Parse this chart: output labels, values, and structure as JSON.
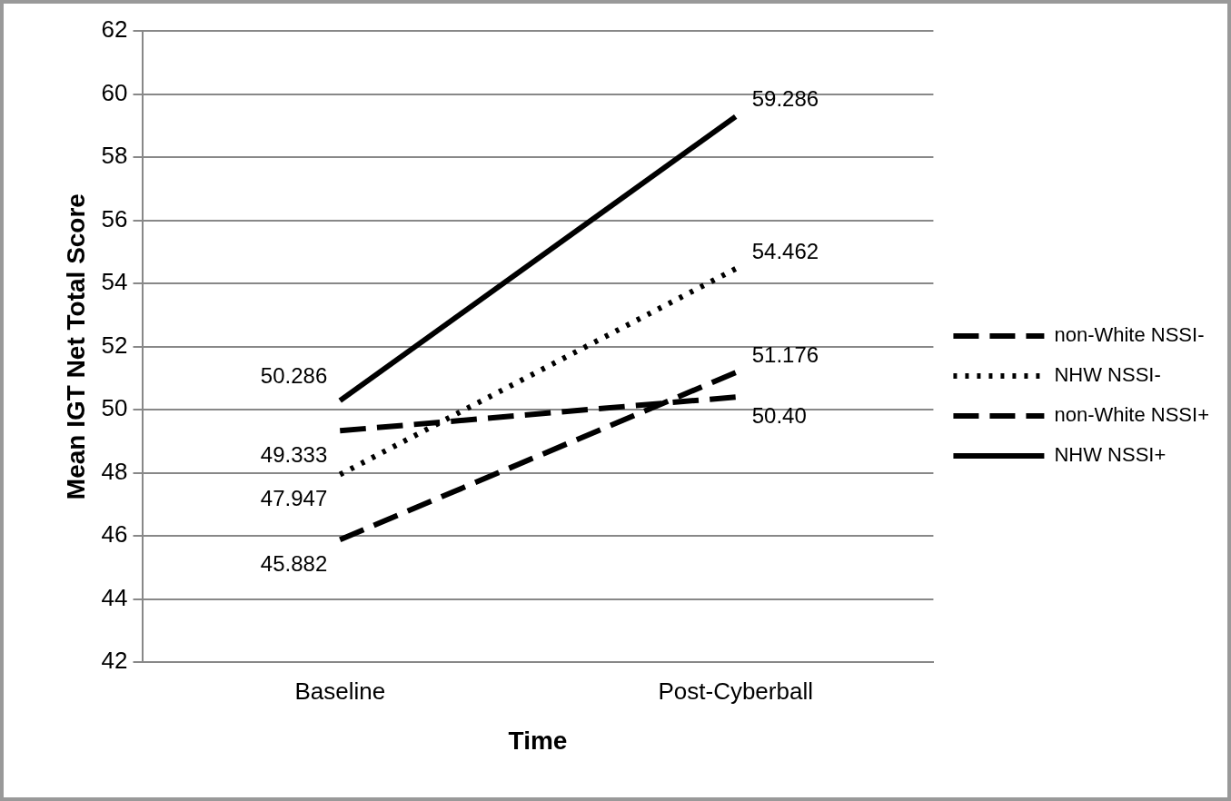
{
  "chart_data": {
    "type": "line",
    "xlabel": "Time",
    "ylabel": "Mean IGT Net Total Score",
    "categories": [
      "Baseline",
      "Post-Cyberball"
    ],
    "ylim": [
      42,
      62
    ],
    "yticks": [
      42,
      44,
      46,
      48,
      50,
      52,
      54,
      56,
      58,
      60,
      62
    ],
    "grid": "y",
    "legend": "right",
    "marker": "none",
    "series": [
      {
        "name": "non-White NSSI-",
        "color": "#000000",
        "line_style": "dashed",
        "values": [
          45.882,
          51.176
        ],
        "value_labels": [
          "45.882",
          "51.176"
        ]
      },
      {
        "name": "NHW NSSI-",
        "color": "#000000",
        "line_style": "dotted",
        "values": [
          47.947,
          54.462
        ],
        "value_labels": [
          "47.947",
          "54.462"
        ]
      },
      {
        "name": "non-White NSSI+",
        "color": "#000000",
        "line_style": "dashed",
        "values": [
          49.333,
          50.4
        ],
        "value_labels": [
          "49.333",
          "50.40"
        ]
      },
      {
        "name": "NHW NSSI+",
        "color": "#000000",
        "line_style": "solid",
        "values": [
          50.286,
          59.286
        ],
        "value_labels": [
          "50.286",
          "59.286"
        ]
      }
    ]
  }
}
